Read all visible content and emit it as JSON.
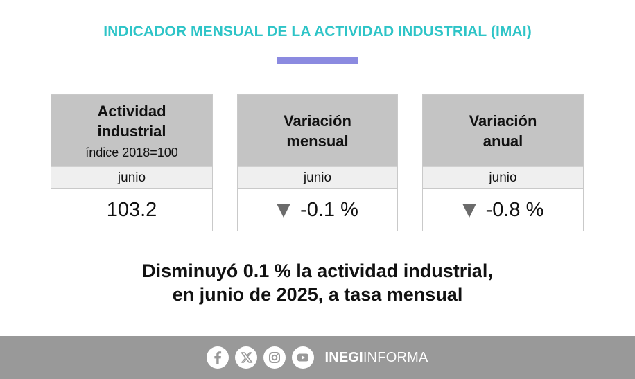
{
  "header": {
    "title": "INDICADOR MENSUAL DE LA ACTIVIDAD INDUSTRIAL (IMAI)",
    "accent_color": "#8b8ae0",
    "title_color": "#2ec4c7"
  },
  "cards": [
    {
      "title": "Actividad\nindustrial",
      "subtitle": "índice 2018=100",
      "period": "junio",
      "value": "103.2",
      "trend_icon": ""
    },
    {
      "title": "Variación\nmensual",
      "subtitle": "",
      "period": "junio",
      "value": "-0.1 %",
      "trend_icon": "down-triangle-icon"
    },
    {
      "title": "Variación\nanual",
      "subtitle": "",
      "period": "junio",
      "value": "-0.8 %",
      "trend_icon": "down-triangle-icon"
    }
  ],
  "headline": {
    "line1": "Disminuyó 0.1 % la actividad industrial,",
    "line2": "en junio de 2025, a tasa mensual"
  },
  "footer": {
    "icons": [
      "facebook-icon",
      "x-icon",
      "instagram-icon",
      "youtube-icon"
    ],
    "brand_bold": "INEGI",
    "brand_regular": "INFORMA",
    "background": "#999999"
  }
}
